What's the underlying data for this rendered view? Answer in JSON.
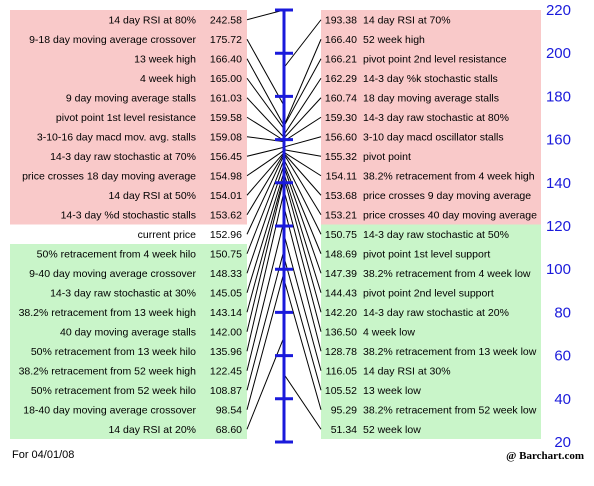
{
  "chart_data": {
    "type": "table",
    "ylim": [
      20,
      220
    ],
    "yticks": [
      20,
      40,
      60,
      80,
      100,
      120,
      140,
      160,
      180,
      200,
      220
    ],
    "colors": {
      "above": "#f9c9c9",
      "below": "#c9f5c9",
      "current": "#ffffff",
      "axis": "#1a1adb",
      "connector": "#000000"
    },
    "left": [
      {
        "label": "14 day RSI at 80%",
        "value": 242.58
      },
      {
        "label": "9-18 day moving average crossover",
        "value": 175.72
      },
      {
        "label": "13 week high",
        "value": 166.4
      },
      {
        "label": "4 week high",
        "value": 165.0
      },
      {
        "label": "9 day moving average stalls",
        "value": 161.03
      },
      {
        "label": "pivot point 1st level resistance",
        "value": 159.58
      },
      {
        "label": "3-10-16 day macd mov. avg. stalls",
        "value": 159.08
      },
      {
        "label": "14-3 day raw stochastic at 70%",
        "value": 156.45
      },
      {
        "label": "price crosses 18 day moving average",
        "value": 154.98
      },
      {
        "label": "14 day RSI at 50%",
        "value": 154.01
      },
      {
        "label": "14-3 day %d stochastic stalls",
        "value": 153.62
      },
      {
        "label": "current price",
        "value": 152.96
      },
      {
        "label": "50% retracement from 4 week hilo",
        "value": 150.75
      },
      {
        "label": "9-40 day moving average crossover",
        "value": 148.33
      },
      {
        "label": "14-3 day raw stochastic at 30%",
        "value": 145.05
      },
      {
        "label": "38.2% retracement from 13 week high",
        "value": 143.14
      },
      {
        "label": "40 day moving average stalls",
        "value": 142.0
      },
      {
        "label": "50% retracement from 13 week hilo",
        "value": 135.96
      },
      {
        "label": "38.2% retracement from 52 week high",
        "value": 122.45
      },
      {
        "label": "50% retracement from 52 week hilo",
        "value": 108.87
      },
      {
        "label": "18-40 day moving average crossover",
        "value": 98.54
      },
      {
        "label": "14 day RSI at 20%",
        "value": 68.6
      }
    ],
    "right": [
      {
        "label": "14 day RSI at 70%",
        "value": 193.38
      },
      {
        "label": "52 week high",
        "value": 166.4
      },
      {
        "label": "pivot point 2nd level resistance",
        "value": 166.21
      },
      {
        "label": "14-3 day %k stochastic stalls",
        "value": 162.29
      },
      {
        "label": "18 day moving average stalls",
        "value": 160.74
      },
      {
        "label": "14-3 day raw stochastic at 80%",
        "value": 159.3
      },
      {
        "label": "3-10 day macd oscillator stalls",
        "value": 156.6
      },
      {
        "label": "pivot point",
        "value": 155.32
      },
      {
        "label": "38.2% retracement from 4 week high",
        "value": 154.11
      },
      {
        "label": "price crosses 9 day moving average",
        "value": 153.68
      },
      {
        "label": "price crosses 40 day moving average",
        "value": 153.21
      },
      {
        "label": "14-3 day raw stochastic at 50%",
        "value": 150.75
      },
      {
        "label": "pivot point 1st level support",
        "value": 148.69
      },
      {
        "label": "38.2% retracement from 4 week low",
        "value": 147.39
      },
      {
        "label": "pivot point 2nd level support",
        "value": 144.43
      },
      {
        "label": "14-3 day raw stochastic at 20%",
        "value": 142.2
      },
      {
        "label": "4 week low",
        "value": 136.5
      },
      {
        "label": "38.2% retracement from 13 week low",
        "value": 128.78
      },
      {
        "label": "14 day RSI at 30%",
        "value": 116.05
      },
      {
        "label": "13 week low",
        "value": 105.52
      },
      {
        "label": "38.2% retracement from 52 week low",
        "value": 95.29
      },
      {
        "label": "52 week low",
        "value": 51.34
      }
    ]
  },
  "footer": {
    "date_note": "For 04/01/08",
    "credit": "@ Barchart.com"
  }
}
